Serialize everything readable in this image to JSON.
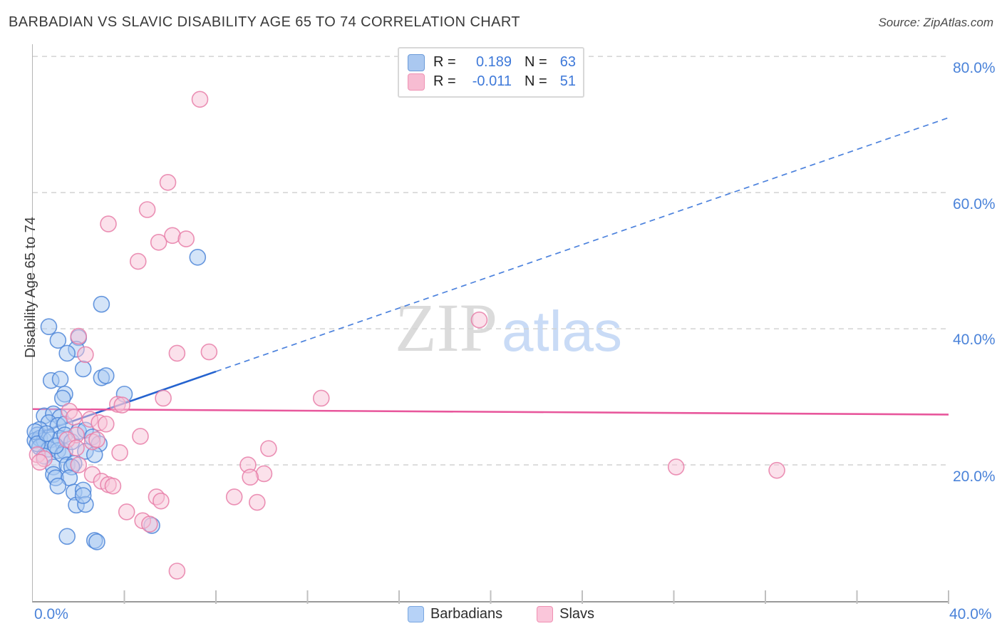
{
  "header": {
    "title": "BARBADIAN VS SLAVIC DISABILITY AGE 65 TO 74 CORRELATION CHART",
    "source": "Source: ZipAtlas.com"
  },
  "watermark": {
    "zip": "ZIP",
    "atlas": "atlas"
  },
  "y_axis": {
    "label": "Disability Age 65 to 74",
    "tick_labels": [
      "80.0%",
      "60.0%",
      "40.0%",
      "20.0%"
    ]
  },
  "x_axis": {
    "left_label": "0.0%",
    "right_label": "40.0%"
  },
  "legend_box": {
    "rows": [
      {
        "series": "Barbadians",
        "r_label": "R =",
        "r_value": "0.189",
        "n_label": "N =",
        "n_value": "63"
      },
      {
        "series": "Slavs",
        "r_label": "R =",
        "r_value": "-0.011",
        "n_label": "N =",
        "n_value": "51"
      }
    ]
  },
  "bottom_legend": {
    "items": [
      {
        "label": "Barbadians",
        "color": "blue"
      },
      {
        "label": "Slavs",
        "color": "pink"
      }
    ]
  },
  "chart_data": {
    "type": "scatter",
    "title": "Barbadian vs Slavic Disability Age 65 to 74",
    "xlabel": "",
    "ylabel": "Disability Age 65 to 74",
    "xlim": [
      0,
      40
    ],
    "ylim": [
      0,
      81.8
    ],
    "x_unit": "%",
    "y_unit": "%",
    "grid_y_percent": [
      20,
      40,
      60,
      80
    ],
    "x_ticks_percent": [
      4,
      8,
      12,
      16,
      20,
      24,
      28,
      32,
      36,
      40
    ],
    "grid_on": true,
    "legend_position": "top-center",
    "colors": {
      "blue_fill": "#a9c9f1",
      "blue_edge": "#4e86d8",
      "pink_fill": "#f8c3d8",
      "pink_edge": "#e87ea8",
      "blue_trend": "#2563cf",
      "blue_trend_dashed": "#4c82dd",
      "pink_trend": "#e8579c",
      "grid": "#d2d2d2",
      "tick": "#c0c0c0"
    },
    "series": [
      {
        "name": "Barbadians",
        "R": 0.189,
        "N": 63,
        "points": [
          [
            7.2,
            50.5
          ],
          [
            3.0,
            43.6
          ],
          [
            0.7,
            40.3
          ],
          [
            1.1,
            38.3
          ],
          [
            2.0,
            38.7
          ],
          [
            1.9,
            37.0
          ],
          [
            1.5,
            36.4
          ],
          [
            2.2,
            34.1
          ],
          [
            0.8,
            32.4
          ],
          [
            1.2,
            32.6
          ],
          [
            3.0,
            32.8
          ],
          [
            3.2,
            33.1
          ],
          [
            1.4,
            30.4
          ],
          [
            4.0,
            30.4
          ],
          [
            1.3,
            29.8
          ],
          [
            0.5,
            27.2
          ],
          [
            0.9,
            27.5
          ],
          [
            1.2,
            27.0
          ],
          [
            0.7,
            26.2
          ],
          [
            1.1,
            25.8
          ],
          [
            1.4,
            26.0
          ],
          [
            0.3,
            25.2
          ],
          [
            0.2,
            24.4
          ],
          [
            0.1,
            23.6
          ],
          [
            0.3,
            23.9
          ],
          [
            0.5,
            23.6
          ],
          [
            0.8,
            23.7
          ],
          [
            1.2,
            23.9
          ],
          [
            1.4,
            24.4
          ],
          [
            0.3,
            22.6
          ],
          [
            0.7,
            22.3
          ],
          [
            1.1,
            22.1
          ],
          [
            1.4,
            22.0
          ],
          [
            1.3,
            21.5
          ],
          [
            0.5,
            21.3
          ],
          [
            1.7,
            23.4
          ],
          [
            2.0,
            24.9
          ],
          [
            2.3,
            25.1
          ],
          [
            2.6,
            24.1
          ],
          [
            2.9,
            23.1
          ],
          [
            2.3,
            22.0
          ],
          [
            2.7,
            21.5
          ],
          [
            0.9,
            19.7
          ],
          [
            1.5,
            20.0
          ],
          [
            1.8,
            20.2
          ],
          [
            0.9,
            18.6
          ],
          [
            1.0,
            18.1
          ],
          [
            1.7,
            19.7
          ],
          [
            1.6,
            18.1
          ],
          [
            1.1,
            16.9
          ],
          [
            1.8,
            16.0
          ],
          [
            2.2,
            16.3
          ],
          [
            1.9,
            14.1
          ],
          [
            2.3,
            14.2
          ],
          [
            2.2,
            15.5
          ],
          [
            1.5,
            9.5
          ],
          [
            2.7,
            8.9
          ],
          [
            2.8,
            8.7
          ],
          [
            5.2,
            11.1
          ],
          [
            0.1,
            24.9
          ],
          [
            0.2,
            23.1
          ],
          [
            0.6,
            24.6
          ],
          [
            1.0,
            22.8
          ]
        ]
      },
      {
        "name": "Slavs",
        "R": -0.011,
        "N": 51,
        "points": [
          [
            7.3,
            73.7
          ],
          [
            5.9,
            61.5
          ],
          [
            5.0,
            57.5
          ],
          [
            3.3,
            55.4
          ],
          [
            5.5,
            52.7
          ],
          [
            6.1,
            53.7
          ],
          [
            6.7,
            53.2
          ],
          [
            4.6,
            49.9
          ],
          [
            2.0,
            38.9
          ],
          [
            2.3,
            36.2
          ],
          [
            6.3,
            36.4
          ],
          [
            7.7,
            36.6
          ],
          [
            3.7,
            28.9
          ],
          [
            5.7,
            29.8
          ],
          [
            12.6,
            29.8
          ],
          [
            19.5,
            41.3
          ],
          [
            1.6,
            27.9
          ],
          [
            1.8,
            27.0
          ],
          [
            2.5,
            26.7
          ],
          [
            2.9,
            26.2
          ],
          [
            3.2,
            26.0
          ],
          [
            3.9,
            28.8
          ],
          [
            1.9,
            24.4
          ],
          [
            1.5,
            23.7
          ],
          [
            2.6,
            23.4
          ],
          [
            2.8,
            23.7
          ],
          [
            0.2,
            21.5
          ],
          [
            0.5,
            20.9
          ],
          [
            0.3,
            20.4
          ],
          [
            1.9,
            22.5
          ],
          [
            3.8,
            21.8
          ],
          [
            4.7,
            24.2
          ],
          [
            2.0,
            20.0
          ],
          [
            2.6,
            18.6
          ],
          [
            3.0,
            17.6
          ],
          [
            3.3,
            17.1
          ],
          [
            3.5,
            16.9
          ],
          [
            4.1,
            13.1
          ],
          [
            4.8,
            11.8
          ],
          [
            5.1,
            11.3
          ],
          [
            5.4,
            15.3
          ],
          [
            5.6,
            14.7
          ],
          [
            6.3,
            4.4
          ],
          [
            8.8,
            15.3
          ],
          [
            10.3,
            22.4
          ],
          [
            9.4,
            20.0
          ],
          [
            10.1,
            18.7
          ],
          [
            9.5,
            18.2
          ],
          [
            9.8,
            14.5
          ],
          [
            28.1,
            19.7
          ],
          [
            32.5,
            19.2
          ]
        ]
      }
    ],
    "trend_lines": [
      {
        "series": "Barbadians",
        "start": [
          0,
          24.4
        ],
        "end": [
          40,
          71.0
        ],
        "solid_until_x": 8.0
      },
      {
        "series": "Slavs",
        "start": [
          0,
          28.2
        ],
        "end": [
          40,
          27.4
        ]
      }
    ]
  }
}
